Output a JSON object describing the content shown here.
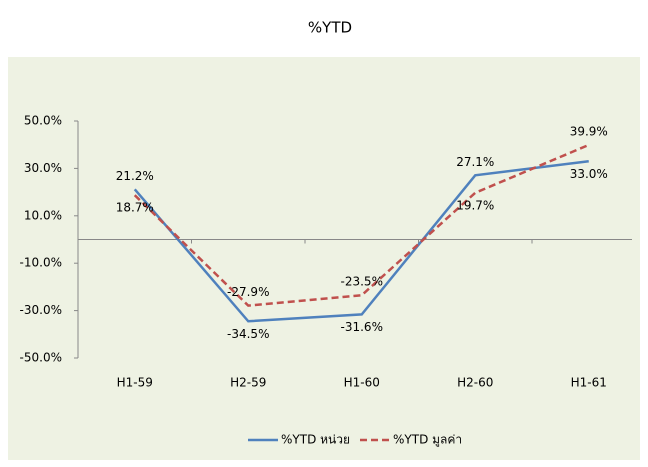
{
  "chart_data": {
    "type": "line",
    "title": "%YTD",
    "categories": [
      "H1-59",
      "H2-59",
      "H1-60",
      "H2-60",
      "H1-61"
    ],
    "series": [
      {
        "name": "%YTD หน่วย",
        "color": "#4f81bd",
        "values": [
          21.2,
          -34.5,
          -31.6,
          27.1,
          33.0
        ],
        "value_labels": [
          "21.2%",
          "-34.5%",
          "-31.6%",
          "27.1%",
          "33.0%"
        ]
      },
      {
        "name": "%YTD มูลค่า",
        "color": "#c0504d",
        "dashed": true,
        "values": [
          18.7,
          -27.9,
          -23.5,
          19.7,
          39.9
        ],
        "value_labels": [
          "18.7%",
          "-27.9%",
          "-23.5%",
          "19.7%",
          "39.9%"
        ]
      }
    ],
    "ylim": [
      -50,
      50
    ],
    "yticks": [
      {
        "value": -50,
        "label": "-50.0%"
      },
      {
        "value": -30,
        "label": "-30.0%"
      },
      {
        "value": -10,
        "label": "-10.0%"
      },
      {
        "value": 10,
        "label": "10.0%"
      },
      {
        "value": 30,
        "label": "30.0%"
      },
      {
        "value": 50,
        "label": "50.0%"
      }
    ],
    "legend": "bottom"
  }
}
